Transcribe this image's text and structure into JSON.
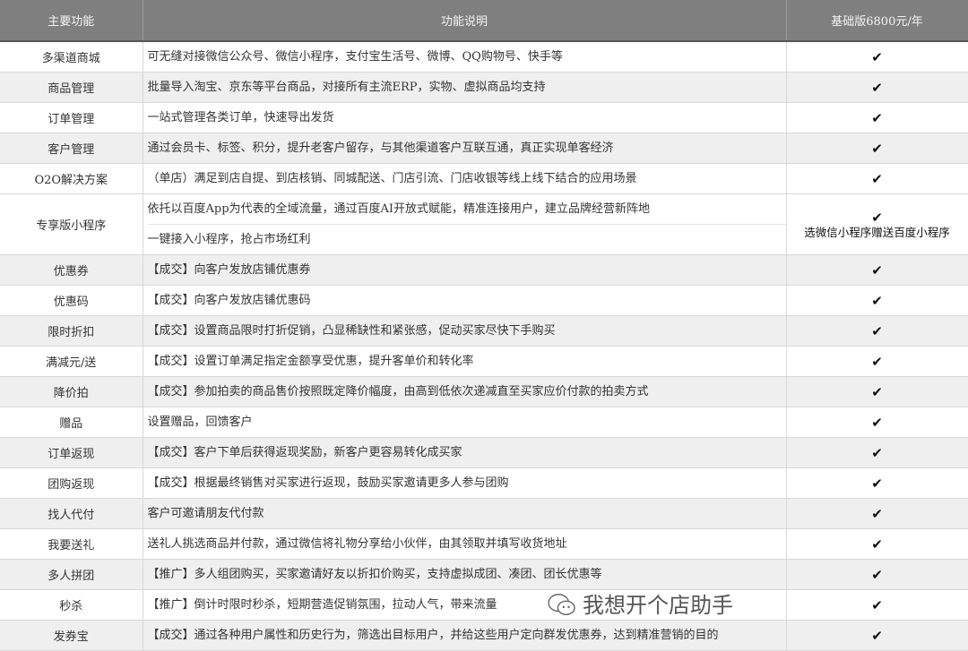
{
  "headers": [
    "主要功能",
    "功能说明",
    "基础版6800元/年"
  ],
  "rows": [
    {
      "name": "多渠道商城",
      "desc": [
        "可无缝对接微信公众号、微信小程序，支付宝生活号、微博、QQ购物号、快手等"
      ],
      "check": "✔"
    },
    {
      "name": "商品管理",
      "desc": [
        "批量导入淘宝、京东等平台商品，对接所有主流ERP，实物、虚拟商品均支持"
      ],
      "check": "✔"
    },
    {
      "name": "订单管理",
      "desc": [
        "一站式管理各类订单，快速导出发货"
      ],
      "check": "✔"
    },
    {
      "name": "客户管理",
      "desc": [
        "通过会员卡、标签、积分，提升老客户留存，与其他渠道客户互联互通，真正实现单客经济"
      ],
      "check": "✔"
    },
    {
      "name": "O2O解决方案",
      "desc": [
        "（单店）满足到店自提、到店核销、同城配送、门店引流、门店收银等线上线下结合的应用场景"
      ],
      "check": "✔"
    },
    {
      "name": "专享版小程序",
      "desc": [
        "依托以百度App为代表的全域流量，通过百度AI开放式赋能，精准连接用户，建立品牌经营新阵地",
        "一键接入小程序，抢占市场红利"
      ],
      "check": "✔",
      "note": "选微信小程序赠送百度小程序"
    },
    {
      "name": "优惠券",
      "desc": [
        "【成交】向客户发放店铺优惠券"
      ],
      "check": "✔"
    },
    {
      "name": "优惠码",
      "desc": [
        "【成交】向客户发放店铺优惠码"
      ],
      "check": "✔"
    },
    {
      "name": "限时折扣",
      "desc": [
        "【成交】设置商品限时打折促销，凸显稀缺性和紧张感，促动买家尽快下手购买"
      ],
      "check": "✔"
    },
    {
      "name": "满减元/送",
      "desc": [
        "【成交】设置订单满足指定金额享受优惠，提升客单价和转化率"
      ],
      "check": "✔"
    },
    {
      "name": "降价拍",
      "desc": [
        "【成交】参加拍卖的商品售价按照既定降价幅度，由高到低依次递减直至买家应价付款的拍卖方式"
      ],
      "check": "✔"
    },
    {
      "name": "赠品",
      "desc": [
        "设置赠品，回馈客户"
      ],
      "check": "✔"
    },
    {
      "name": "订单返现",
      "desc": [
        "【成交】客户下单后获得返现奖励，新客户更容易转化成买家"
      ],
      "check": "✔"
    },
    {
      "name": "团购返现",
      "desc": [
        "【成交】根据最终销售对买家进行返现，鼓励买家邀请更多人参与团购"
      ],
      "check": "✔"
    },
    {
      "name": "找人代付",
      "desc": [
        "客户可邀请朋友代付款"
      ],
      "check": "✔"
    },
    {
      "name": "我要送礼",
      "desc": [
        "送礼人挑选商品并付款，通过微信将礼物分享给小伙伴，由其领取并填写收货地址"
      ],
      "check": "✔"
    },
    {
      "name": "多人拼团",
      "desc": [
        "【推广】多人组团购买，买家邀请好友以折扣价购买，支持虚拟成团、凑团、团长优惠等"
      ],
      "check": "✔"
    },
    {
      "name": "秒杀",
      "desc": [
        "【推广】倒计时限时秒杀，短期营造促销氛围，拉动人气，带来流量"
      ],
      "check": "✔"
    },
    {
      "name": "发券宝",
      "desc": [
        "【成交】通过各种用户属性和历史行为，筛选出目标用户，并给这些用户定向群发优惠券，达到精准营销的目的"
      ],
      "check": "✔"
    }
  ],
  "watermark": {
    "text": "我想开个店助手",
    "icon": "wechat-icon"
  },
  "colors": {
    "header_bg": "#7f7f7f",
    "stripe": "#efefef"
  }
}
